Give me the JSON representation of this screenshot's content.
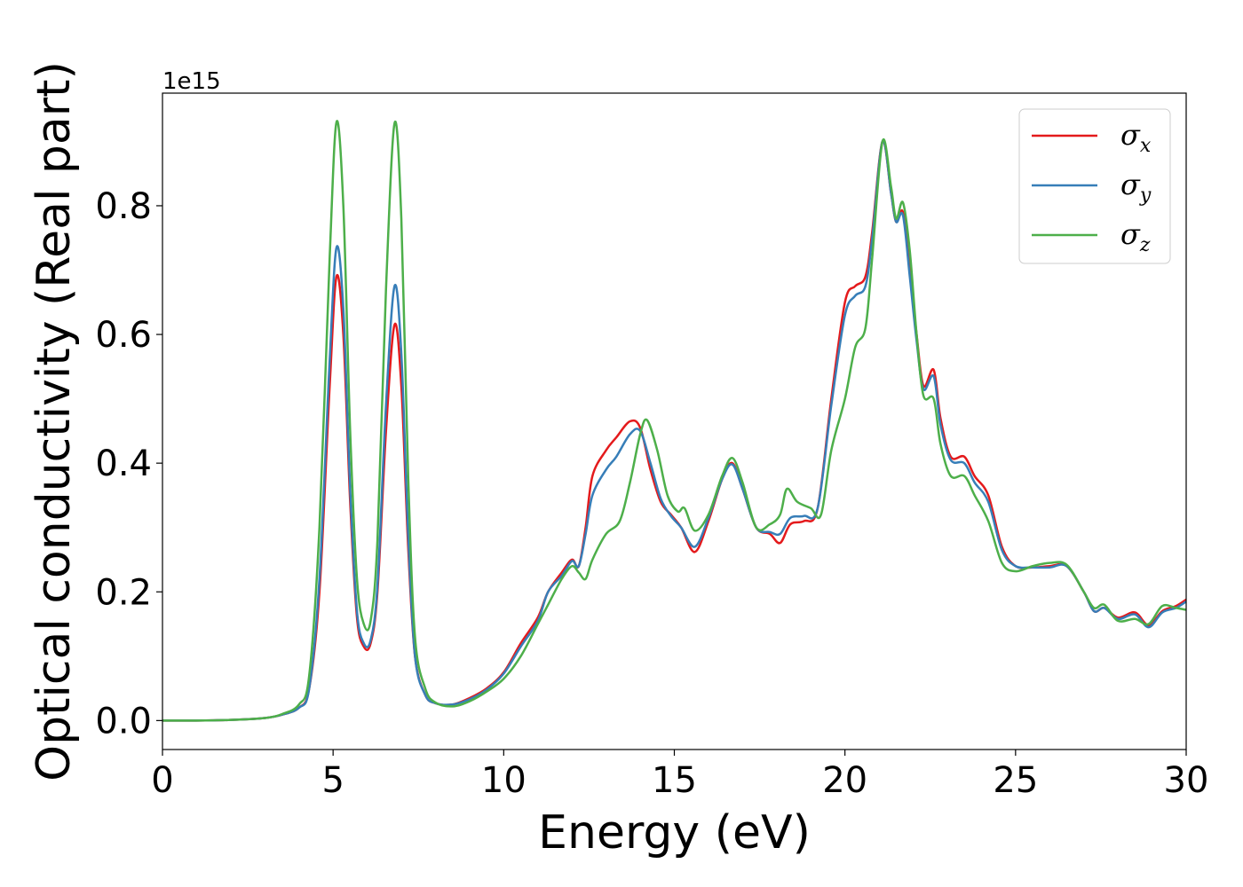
{
  "chart_data": {
    "type": "line",
    "title": "",
    "xlabel": "Energy (eV)",
    "ylabel": "Optical conductivity (Real part)",
    "y_offset_label": "1e15",
    "xlim": [
      0,
      30
    ],
    "ylim": [
      -0.045,
      0.975
    ],
    "x_ticks": [
      0,
      5,
      10,
      15,
      20,
      25,
      30
    ],
    "x_tick_labels": [
      "0",
      "5",
      "10",
      "15",
      "20",
      "25",
      "30"
    ],
    "y_ticks": [
      0.0,
      0.2,
      0.4,
      0.6,
      0.8
    ],
    "y_tick_labels": [
      "0.0",
      "0.2",
      "0.4",
      "0.6",
      "0.8"
    ],
    "grid": false,
    "legend_position": "top-right",
    "series": [
      {
        "name": "σx",
        "symbol": "σ",
        "subscript": "x",
        "color": "#e41a1c",
        "points": [
          [
            0,
            0
          ],
          [
            1,
            0
          ],
          [
            2,
            0.001
          ],
          [
            3,
            0.004
          ],
          [
            3.5,
            0.009
          ],
          [
            4,
            0.02
          ],
          [
            4.3,
            0.05
          ],
          [
            4.6,
            0.2
          ],
          [
            4.9,
            0.52
          ],
          [
            5.1,
            0.69
          ],
          [
            5.3,
            0.6
          ],
          [
            5.5,
            0.34
          ],
          [
            5.7,
            0.16
          ],
          [
            5.9,
            0.115
          ],
          [
            6.1,
            0.12
          ],
          [
            6.3,
            0.2
          ],
          [
            6.55,
            0.45
          ],
          [
            6.8,
            0.615
          ],
          [
            7,
            0.52
          ],
          [
            7.2,
            0.27
          ],
          [
            7.4,
            0.1
          ],
          [
            7.7,
            0.04
          ],
          [
            8,
            0.027
          ],
          [
            8.5,
            0.025
          ],
          [
            9,
            0.035
          ],
          [
            9.5,
            0.05
          ],
          [
            10,
            0.075
          ],
          [
            10.5,
            0.12
          ],
          [
            11,
            0.16
          ],
          [
            11.3,
            0.2
          ],
          [
            11.7,
            0.23
          ],
          [
            12,
            0.25
          ],
          [
            12.2,
            0.24
          ],
          [
            12.4,
            0.3
          ],
          [
            12.6,
            0.38
          ],
          [
            13,
            0.42
          ],
          [
            13.3,
            0.44
          ],
          [
            13.7,
            0.465
          ],
          [
            14,
            0.455
          ],
          [
            14.3,
            0.39
          ],
          [
            14.6,
            0.34
          ],
          [
            14.9,
            0.32
          ],
          [
            15.2,
            0.3
          ],
          [
            15.6,
            0.262
          ],
          [
            16,
            0.31
          ],
          [
            16.4,
            0.375
          ],
          [
            16.7,
            0.4
          ],
          [
            17,
            0.36
          ],
          [
            17.4,
            0.3
          ],
          [
            17.8,
            0.29
          ],
          [
            18.1,
            0.276
          ],
          [
            18.4,
            0.305
          ],
          [
            18.8,
            0.31
          ],
          [
            19.2,
            0.33
          ],
          [
            19.6,
            0.5
          ],
          [
            20,
            0.65
          ],
          [
            20.3,
            0.675
          ],
          [
            20.6,
            0.69
          ],
          [
            20.8,
            0.76
          ],
          [
            21.1,
            0.9
          ],
          [
            21.35,
            0.82
          ],
          [
            21.5,
            0.775
          ],
          [
            21.7,
            0.79
          ],
          [
            21.9,
            0.7
          ],
          [
            22.1,
            0.6
          ],
          [
            22.3,
            0.52
          ],
          [
            22.6,
            0.545
          ],
          [
            22.8,
            0.47
          ],
          [
            23.1,
            0.41
          ],
          [
            23.5,
            0.41
          ],
          [
            23.8,
            0.38
          ],
          [
            24.2,
            0.35
          ],
          [
            24.6,
            0.27
          ],
          [
            25,
            0.24
          ],
          [
            25.5,
            0.238
          ],
          [
            26,
            0.24
          ],
          [
            26.5,
            0.24
          ],
          [
            27,
            0.2
          ],
          [
            27.3,
            0.17
          ],
          [
            27.6,
            0.175
          ],
          [
            28,
            0.16
          ],
          [
            28.5,
            0.168
          ],
          [
            28.9,
            0.148
          ],
          [
            29.3,
            0.17
          ],
          [
            29.7,
            0.178
          ],
          [
            30,
            0.188
          ]
        ]
      },
      {
        "name": "σy",
        "symbol": "σ",
        "subscript": "y",
        "color": "#377eb8",
        "points": [
          [
            0,
            0
          ],
          [
            1,
            0
          ],
          [
            2,
            0.001
          ],
          [
            3,
            0.004
          ],
          [
            3.5,
            0.009
          ],
          [
            4,
            0.02
          ],
          [
            4.3,
            0.05
          ],
          [
            4.6,
            0.22
          ],
          [
            4.9,
            0.56
          ],
          [
            5.1,
            0.735
          ],
          [
            5.3,
            0.64
          ],
          [
            5.5,
            0.36
          ],
          [
            5.7,
            0.17
          ],
          [
            5.9,
            0.12
          ],
          [
            6.1,
            0.125
          ],
          [
            6.3,
            0.21
          ],
          [
            6.55,
            0.49
          ],
          [
            6.8,
            0.675
          ],
          [
            7,
            0.57
          ],
          [
            7.2,
            0.29
          ],
          [
            7.4,
            0.1
          ],
          [
            7.7,
            0.04
          ],
          [
            8,
            0.027
          ],
          [
            8.5,
            0.025
          ],
          [
            9,
            0.033
          ],
          [
            9.5,
            0.048
          ],
          [
            10,
            0.073
          ],
          [
            10.5,
            0.115
          ],
          [
            11,
            0.155
          ],
          [
            11.3,
            0.2
          ],
          [
            11.7,
            0.225
          ],
          [
            12,
            0.248
          ],
          [
            12.2,
            0.24
          ],
          [
            12.4,
            0.29
          ],
          [
            12.6,
            0.35
          ],
          [
            13,
            0.39
          ],
          [
            13.3,
            0.41
          ],
          [
            13.7,
            0.445
          ],
          [
            14,
            0.45
          ],
          [
            14.3,
            0.4
          ],
          [
            14.6,
            0.345
          ],
          [
            14.9,
            0.318
          ],
          [
            15.2,
            0.3
          ],
          [
            15.6,
            0.27
          ],
          [
            16,
            0.315
          ],
          [
            16.4,
            0.375
          ],
          [
            16.7,
            0.398
          ],
          [
            17,
            0.36
          ],
          [
            17.4,
            0.3
          ],
          [
            17.8,
            0.293
          ],
          [
            18.1,
            0.29
          ],
          [
            18.4,
            0.315
          ],
          [
            18.8,
            0.318
          ],
          [
            19.2,
            0.33
          ],
          [
            19.6,
            0.49
          ],
          [
            20,
            0.63
          ],
          [
            20.3,
            0.66
          ],
          [
            20.6,
            0.675
          ],
          [
            20.8,
            0.75
          ],
          [
            21.1,
            0.9
          ],
          [
            21.35,
            0.82
          ],
          [
            21.5,
            0.775
          ],
          [
            21.7,
            0.785
          ],
          [
            21.9,
            0.69
          ],
          [
            22.1,
            0.59
          ],
          [
            22.3,
            0.515
          ],
          [
            22.6,
            0.535
          ],
          [
            22.8,
            0.46
          ],
          [
            23.1,
            0.405
          ],
          [
            23.5,
            0.4
          ],
          [
            23.8,
            0.37
          ],
          [
            24.2,
            0.34
          ],
          [
            24.6,
            0.265
          ],
          [
            25,
            0.24
          ],
          [
            25.5,
            0.238
          ],
          [
            26,
            0.238
          ],
          [
            26.5,
            0.24
          ],
          [
            27,
            0.2
          ],
          [
            27.3,
            0.17
          ],
          [
            27.6,
            0.175
          ],
          [
            28,
            0.158
          ],
          [
            28.5,
            0.165
          ],
          [
            28.9,
            0.145
          ],
          [
            29.3,
            0.168
          ],
          [
            29.7,
            0.175
          ],
          [
            30,
            0.185
          ]
        ]
      },
      {
        "name": "σz",
        "symbol": "σ",
        "subscript": "z",
        "color": "#4daf4a",
        "points": [
          [
            0,
            0
          ],
          [
            1,
            0
          ],
          [
            2,
            0.001
          ],
          [
            3,
            0.004
          ],
          [
            3.5,
            0.01
          ],
          [
            4,
            0.025
          ],
          [
            4.3,
            0.07
          ],
          [
            4.6,
            0.3
          ],
          [
            4.9,
            0.72
          ],
          [
            5.1,
            0.93
          ],
          [
            5.3,
            0.8
          ],
          [
            5.5,
            0.45
          ],
          [
            5.7,
            0.22
          ],
          [
            5.9,
            0.15
          ],
          [
            6.1,
            0.155
          ],
          [
            6.3,
            0.28
          ],
          [
            6.55,
            0.67
          ],
          [
            6.8,
            0.928
          ],
          [
            7,
            0.78
          ],
          [
            7.2,
            0.38
          ],
          [
            7.4,
            0.13
          ],
          [
            7.7,
            0.05
          ],
          [
            8,
            0.028
          ],
          [
            8.5,
            0.022
          ],
          [
            9,
            0.03
          ],
          [
            9.5,
            0.045
          ],
          [
            10,
            0.065
          ],
          [
            10.5,
            0.1
          ],
          [
            11,
            0.15
          ],
          [
            11.3,
            0.18
          ],
          [
            11.7,
            0.22
          ],
          [
            12,
            0.24
          ],
          [
            12.2,
            0.23
          ],
          [
            12.4,
            0.22
          ],
          [
            12.6,
            0.25
          ],
          [
            13,
            0.29
          ],
          [
            13.4,
            0.31
          ],
          [
            13.7,
            0.37
          ],
          [
            14,
            0.445
          ],
          [
            14.2,
            0.467
          ],
          [
            14.5,
            0.42
          ],
          [
            14.8,
            0.35
          ],
          [
            15.1,
            0.325
          ],
          [
            15.3,
            0.33
          ],
          [
            15.6,
            0.295
          ],
          [
            16,
            0.32
          ],
          [
            16.4,
            0.38
          ],
          [
            16.7,
            0.408
          ],
          [
            17,
            0.37
          ],
          [
            17.4,
            0.3
          ],
          [
            17.8,
            0.305
          ],
          [
            18.1,
            0.32
          ],
          [
            18.3,
            0.36
          ],
          [
            18.6,
            0.34
          ],
          [
            19,
            0.33
          ],
          [
            19.3,
            0.32
          ],
          [
            19.6,
            0.42
          ],
          [
            20,
            0.5
          ],
          [
            20.3,
            0.58
          ],
          [
            20.6,
            0.61
          ],
          [
            20.8,
            0.72
          ],
          [
            21.1,
            0.9
          ],
          [
            21.35,
            0.83
          ],
          [
            21.5,
            0.78
          ],
          [
            21.7,
            0.805
          ],
          [
            21.9,
            0.73
          ],
          [
            22.1,
            0.6
          ],
          [
            22.3,
            0.505
          ],
          [
            22.6,
            0.5
          ],
          [
            22.8,
            0.43
          ],
          [
            23.1,
            0.38
          ],
          [
            23.5,
            0.38
          ],
          [
            23.8,
            0.35
          ],
          [
            24.2,
            0.31
          ],
          [
            24.6,
            0.245
          ],
          [
            25,
            0.232
          ],
          [
            25.5,
            0.24
          ],
          [
            26,
            0.245
          ],
          [
            26.5,
            0.242
          ],
          [
            27,
            0.2
          ],
          [
            27.3,
            0.175
          ],
          [
            27.6,
            0.18
          ],
          [
            28,
            0.155
          ],
          [
            28.5,
            0.158
          ],
          [
            28.9,
            0.15
          ],
          [
            29.3,
            0.178
          ],
          [
            29.7,
            0.175
          ],
          [
            30,
            0.172
          ]
        ]
      }
    ]
  }
}
